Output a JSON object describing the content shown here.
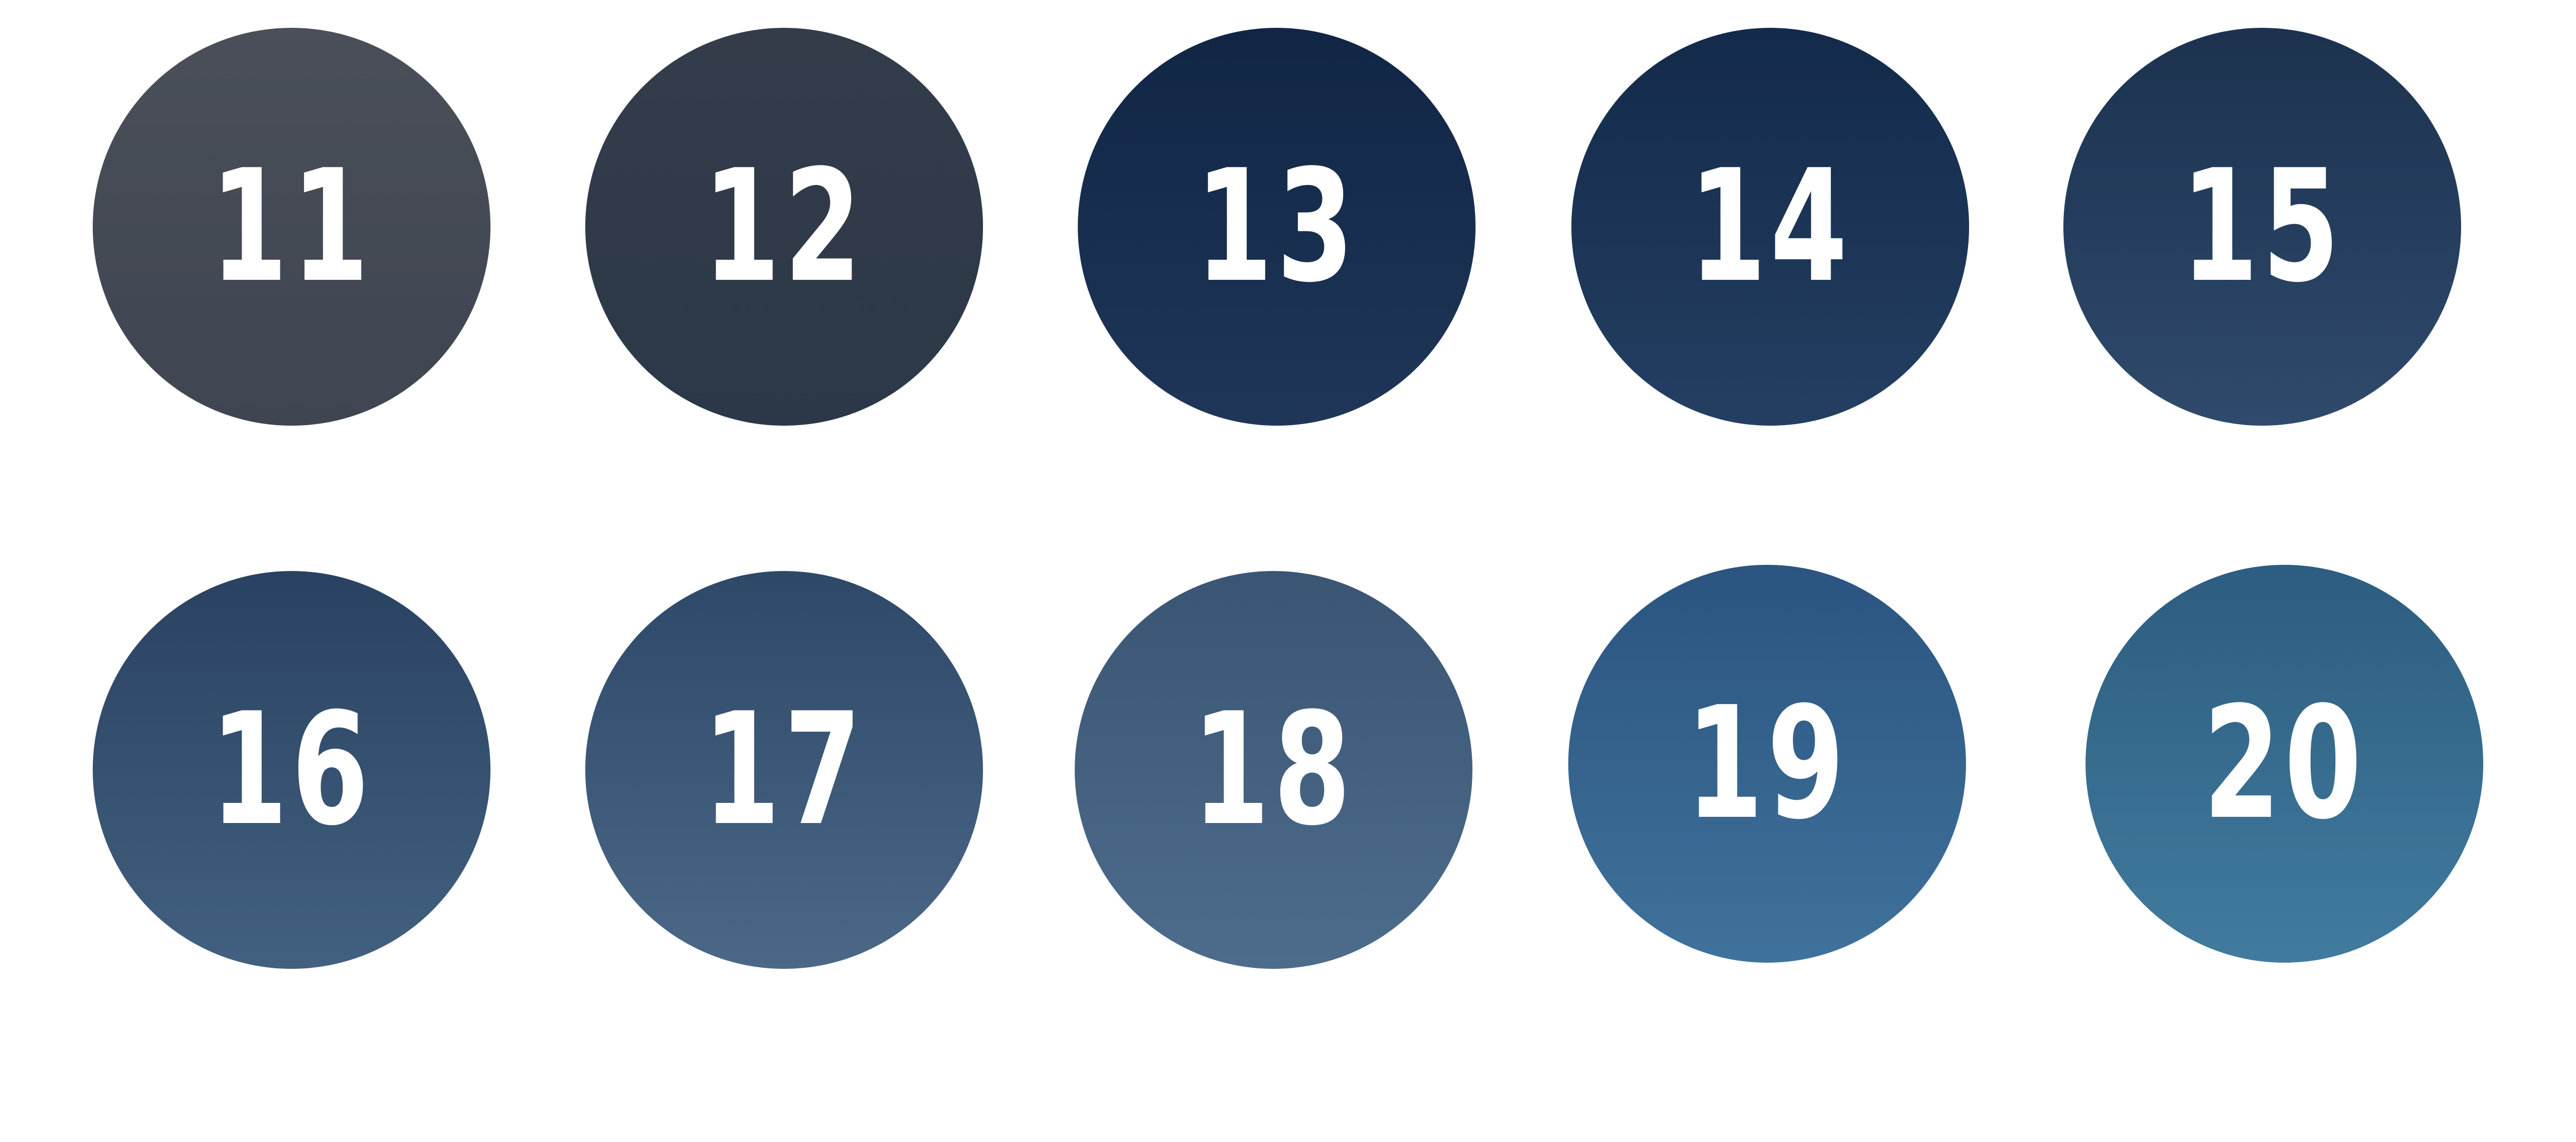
{
  "badges": [
    {
      "id": "11",
      "label": "11",
      "gradient": [
        "#4a4f58",
        "#3f4551"
      ]
    },
    {
      "id": "12",
      "label": "12",
      "gradient": [
        "#343c4a",
        "#2c3848"
      ]
    },
    {
      "id": "13",
      "label": "13",
      "gradient": [
        "#112645",
        "#1f3658"
      ]
    },
    {
      "id": "14",
      "label": "14",
      "gradient": [
        "#132a4a",
        "#243f62"
      ]
    },
    {
      "id": "15",
      "label": "15",
      "gradient": [
        "#1c324f",
        "#2f4a6c"
      ]
    },
    {
      "id": "16",
      "label": "16",
      "gradient": [
        "#2a4262",
        "#42607f"
      ]
    },
    {
      "id": "17",
      "label": "17",
      "gradient": [
        "#2e4868",
        "#4b6887"
      ]
    },
    {
      "id": "18",
      "label": "18",
      "gradient": [
        "#3b5574",
        "#4d6c8b"
      ]
    },
    {
      "id": "19",
      "label": "19",
      "gradient": [
        "#2b5480",
        "#3f729c"
      ]
    },
    {
      "id": "20",
      "label": "20",
      "gradient": [
        "#2d5d80",
        "#417b9e"
      ]
    }
  ]
}
